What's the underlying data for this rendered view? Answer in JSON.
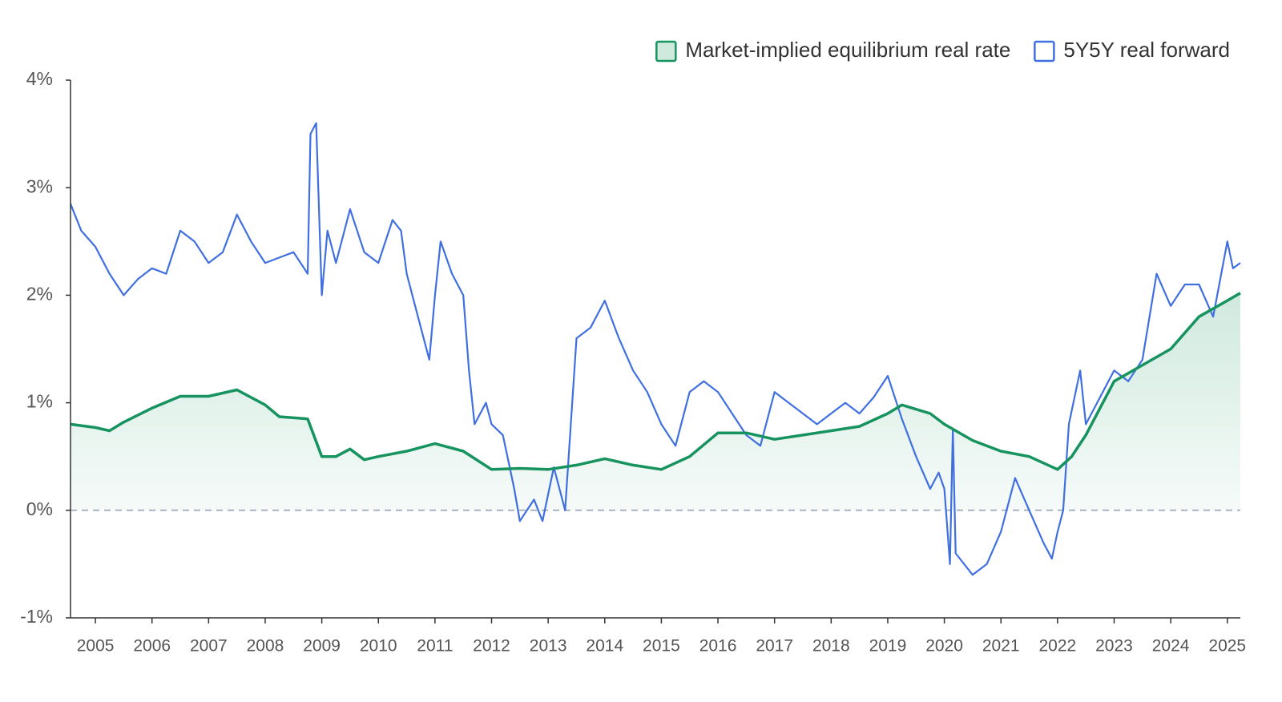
{
  "chart_data": {
    "type": "line",
    "series": [
      {
        "name": "Market-implied equilibrium real rate",
        "color": "#16935e",
        "area": true,
        "x": [
          2004.56,
          2005,
          2005.25,
          2005.5,
          2006,
          2006.5,
          2007,
          2007.5,
          2008,
          2008.25,
          2008.75,
          2009,
          2009.25,
          2009.5,
          2009.75,
          2010,
          2010.5,
          2011,
          2011.5,
          2012,
          2012.5,
          2013,
          2013.5,
          2014,
          2014.5,
          2015,
          2015.5,
          2016,
          2016.5,
          2017,
          2017.5,
          2018,
          2018.5,
          2019,
          2019.25,
          2019.75,
          2020,
          2020.5,
          2021,
          2021.5,
          2022,
          2022.25,
          2022.5,
          2023,
          2023.5,
          2024,
          2024.5,
          2025,
          2025.23
        ],
        "values": [
          0.8,
          0.77,
          0.74,
          0.82,
          0.95,
          1.06,
          1.06,
          1.12,
          0.98,
          0.87,
          0.85,
          0.5,
          0.5,
          0.57,
          0.47,
          0.5,
          0.55,
          0.62,
          0.55,
          0.38,
          0.39,
          0.38,
          0.42,
          0.48,
          0.42,
          0.38,
          0.5,
          0.72,
          0.72,
          0.66,
          0.7,
          0.74,
          0.78,
          0.9,
          0.98,
          0.9,
          0.8,
          0.65,
          0.55,
          0.5,
          0.38,
          0.5,
          0.7,
          1.2,
          1.35,
          1.5,
          1.8,
          1.95,
          2.02
        ]
      },
      {
        "name": "5Y5Y real forward",
        "color": "#3f6fe0",
        "x": [
          2004.56,
          2004.75,
          2005,
          2005.25,
          2005.5,
          2005.75,
          2006,
          2006.25,
          2006.5,
          2006.75,
          2007,
          2007.25,
          2007.5,
          2007.75,
          2008,
          2008.25,
          2008.5,
          2008.75,
          2008.8,
          2008.9,
          2009,
          2009.1,
          2009.25,
          2009.5,
          2009.75,
          2010,
          2010.25,
          2010.4,
          2010.5,
          2010.75,
          2010.9,
          2011,
          2011.1,
          2011.3,
          2011.5,
          2011.6,
          2011.7,
          2011.9,
          2012,
          2012.2,
          2012.4,
          2012.5,
          2012.75,
          2012.9,
          2013.1,
          2013.3,
          2013.5,
          2013.75,
          2014,
          2014.25,
          2014.5,
          2014.75,
          2015,
          2015.25,
          2015.5,
          2015.75,
          2016,
          2016.25,
          2016.5,
          2016.75,
          2017,
          2017.25,
          2017.5,
          2017.75,
          2018,
          2018.25,
          2018.5,
          2018.75,
          2019,
          2019.25,
          2019.5,
          2019.75,
          2019.9,
          2020,
          2020.1,
          2020.15,
          2020.2,
          2020.5,
          2020.75,
          2021,
          2021.25,
          2021.5,
          2021.75,
          2021.9,
          2022,
          2022.1,
          2022.2,
          2022.4,
          2022.5,
          2023,
          2023.25,
          2023.5,
          2023.75,
          2024,
          2024.25,
          2024.5,
          2024.75,
          2025,
          2025.1,
          2025.23
        ],
        "values": [
          2.85,
          2.6,
          2.45,
          2.2,
          2.0,
          2.15,
          2.25,
          2.2,
          2.6,
          2.5,
          2.3,
          2.4,
          2.75,
          2.5,
          2.3,
          2.35,
          2.4,
          2.2,
          3.5,
          3.6,
          2.0,
          2.6,
          2.3,
          2.8,
          2.4,
          2.3,
          2.7,
          2.6,
          2.2,
          1.7,
          1.4,
          2.0,
          2.5,
          2.2,
          2.0,
          1.3,
          0.8,
          1.0,
          0.8,
          0.7,
          0.2,
          -0.1,
          0.1,
          -0.1,
          0.4,
          0.0,
          1.6,
          1.7,
          1.95,
          1.6,
          1.3,
          1.1,
          0.8,
          0.6,
          1.1,
          1.2,
          1.1,
          0.9,
          0.7,
          0.6,
          1.1,
          1.0,
          0.9,
          0.8,
          0.9,
          1.0,
          0.9,
          1.05,
          1.25,
          0.85,
          0.5,
          0.2,
          0.35,
          0.2,
          -0.5,
          0.75,
          -0.4,
          -0.6,
          -0.5,
          -0.2,
          0.3,
          0.0,
          -0.3,
          -0.45,
          -0.2,
          0.0,
          0.8,
          1.3,
          0.8,
          1.3,
          1.2,
          1.4,
          2.2,
          1.9,
          2.1,
          2.1,
          1.8,
          2.5,
          2.25,
          2.3
        ]
      }
    ],
    "xlim": [
      2004.56,
      2025.23
    ],
    "xticks": [
      2005,
      2006,
      2007,
      2008,
      2009,
      2010,
      2011,
      2012,
      2013,
      2014,
      2015,
      2016,
      2017,
      2018,
      2019,
      2020,
      2021,
      2022,
      2023,
      2024,
      2025
    ],
    "ylim": [
      -1,
      4
    ],
    "yticks": [
      {
        "value": -1,
        "label": "-1%"
      },
      {
        "value": 0,
        "label": "0%"
      },
      {
        "value": 1,
        "label": "1%"
      },
      {
        "value": 2,
        "label": "2%"
      },
      {
        "value": 3,
        "label": "3%"
      },
      {
        "value": 4,
        "label": "4%"
      }
    ],
    "reference_line": 0,
    "legend": "top-right"
  }
}
